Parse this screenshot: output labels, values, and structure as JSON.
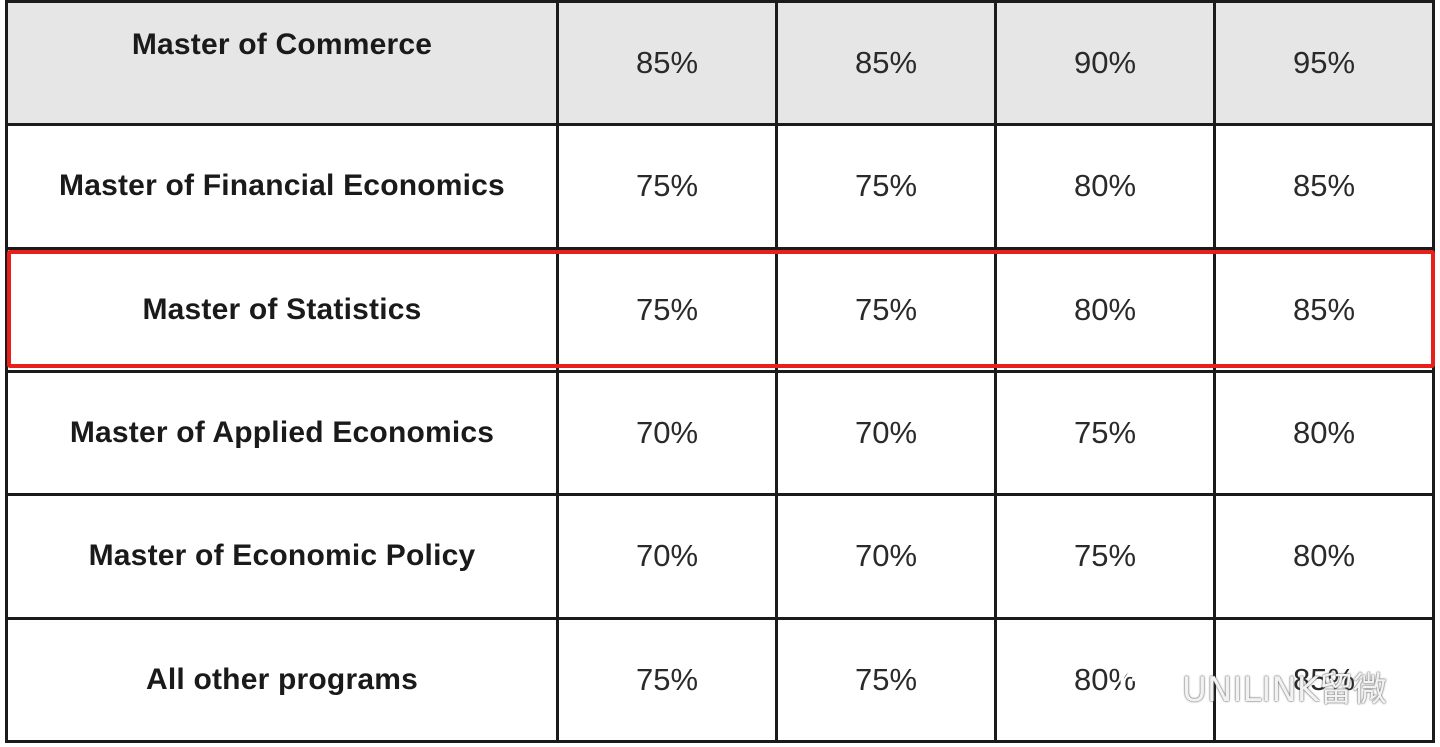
{
  "table": {
    "rows": [
      {
        "program": "Master of Commerce",
        "values": [
          "85%",
          "85%",
          "90%",
          "95%"
        ],
        "shaded": true
      },
      {
        "program": "Master of Financial Economics",
        "values": [
          "75%",
          "75%",
          "80%",
          "85%"
        ],
        "shaded": false
      },
      {
        "program": "Master of Statistics",
        "values": [
          "75%",
          "75%",
          "80%",
          "85%"
        ],
        "shaded": false,
        "highlighted": true
      },
      {
        "program": "Master of Applied Economics",
        "values": [
          "70%",
          "70%",
          "75%",
          "80%"
        ],
        "shaded": false
      },
      {
        "program": "Master of Economic Policy",
        "values": [
          "70%",
          "70%",
          "75%",
          "80%"
        ],
        "shaded": false
      },
      {
        "program": "All other programs",
        "values": [
          "75%",
          "75%",
          "80%",
          "85%"
        ],
        "shaded": false
      }
    ]
  },
  "highlight": {
    "color": "#e8201c"
  },
  "watermark": {
    "text": "UNILINK留微",
    "icon": "wechat-icon"
  }
}
